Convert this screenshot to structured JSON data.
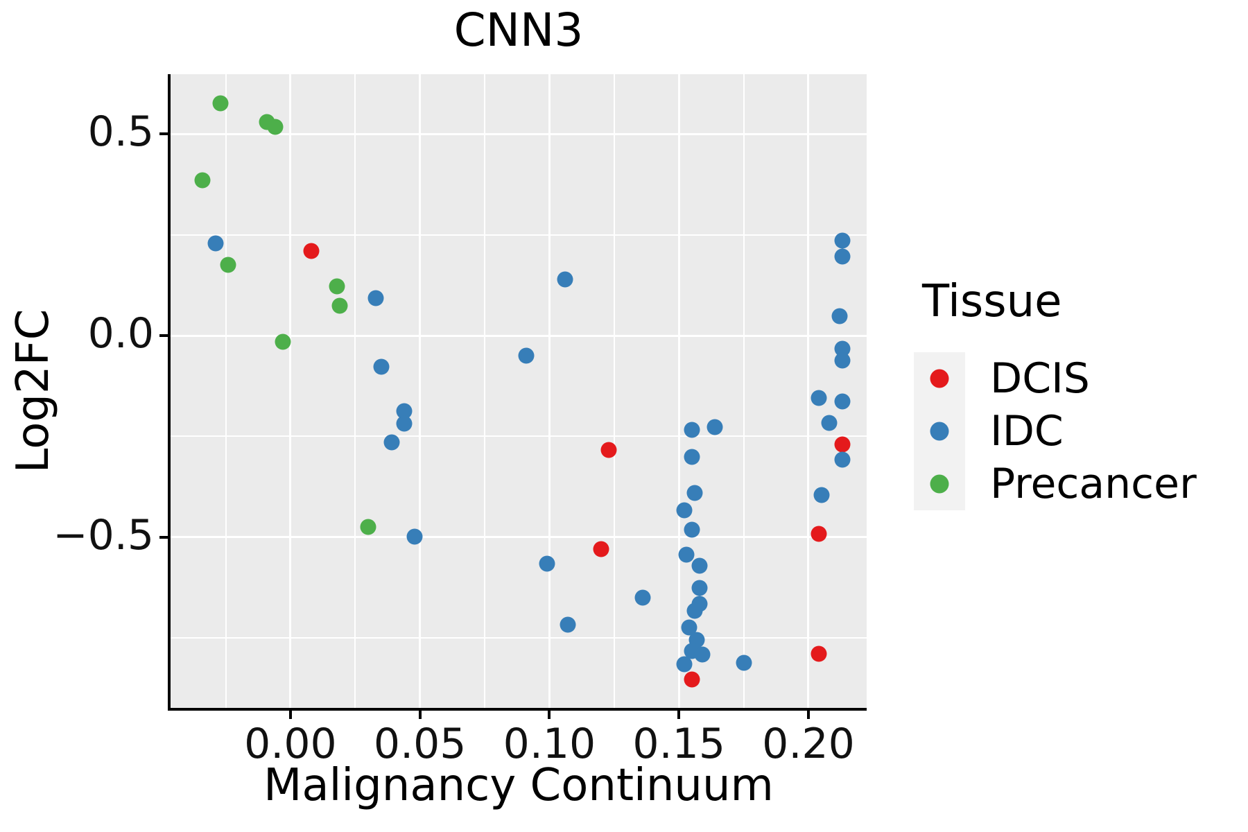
{
  "title": "CNN3",
  "axis": {
    "x_label": "Malignancy Continuum",
    "y_label": "Log2FC"
  },
  "legend": {
    "title": "Tissue",
    "entries": [
      {
        "label": "DCIS",
        "color": "#E41A1C"
      },
      {
        "label": "IDC",
        "color": "#377EB8"
      },
      {
        "label": "Precancer",
        "color": "#4DAF4A"
      }
    ]
  },
  "colors": {
    "panel_background": "#EBEBEB",
    "gridline": "#FFFFFF",
    "legend_key_background": "#F2F2F2",
    "axis_line": "#000000",
    "text": "#111111",
    "dcis_red": "#E41A1C",
    "idc_blue": "#377EB8",
    "precancer_green": "#4DAF4A"
  },
  "chart_data": {
    "type": "scatter",
    "title": "CNN3",
    "xlabel": "Malignancy Continuum",
    "ylabel": "Log2FC",
    "xlim": [
      -0.0463,
      0.2225
    ],
    "ylim": [
      -0.923,
      0.648
    ],
    "x_major_ticks": [
      0.0,
      0.05,
      0.1,
      0.15,
      0.2
    ],
    "x_tick_labels": [
      "0.00",
      "0.05",
      "0.10",
      "0.15",
      "0.20"
    ],
    "x_minor_ticks": [
      -0.025,
      0.025,
      0.075,
      0.125,
      0.175
    ],
    "y_major_ticks": [
      0.5,
      0.0,
      -0.5
    ],
    "y_tick_labels": [
      "0.5",
      "0.0",
      "−0.5"
    ],
    "y_minor_ticks": [
      0.25,
      -0.25,
      -0.75
    ],
    "grid": "on",
    "legend_position": "right",
    "series": [
      {
        "name": "DCIS",
        "color": "#E41A1C",
        "points": [
          [
            0.008,
            0.21
          ],
          [
            0.123,
            -0.284
          ],
          [
            0.12,
            -0.53
          ],
          [
            0.155,
            -0.852
          ],
          [
            0.213,
            -0.27
          ],
          [
            0.204,
            -0.491
          ],
          [
            0.204,
            -0.789
          ]
        ]
      },
      {
        "name": "IDC",
        "color": "#377EB8",
        "points": [
          [
            -0.029,
            0.229
          ],
          [
            0.033,
            0.093
          ],
          [
            0.106,
            0.14
          ],
          [
            0.035,
            -0.078
          ],
          [
            0.091,
            -0.05
          ],
          [
            0.044,
            -0.188
          ],
          [
            0.044,
            -0.219
          ],
          [
            0.039,
            -0.264
          ],
          [
            0.048,
            -0.498
          ],
          [
            0.099,
            -0.565
          ],
          [
            0.136,
            -0.65
          ],
          [
            0.107,
            -0.717
          ],
          [
            0.155,
            -0.234
          ],
          [
            0.164,
            -0.227
          ],
          [
            0.155,
            -0.3
          ],
          [
            0.156,
            -0.39
          ],
          [
            0.152,
            -0.433
          ],
          [
            0.155,
            -0.482
          ],
          [
            0.153,
            -0.543
          ],
          [
            0.158,
            -0.57
          ],
          [
            0.158,
            -0.626
          ],
          [
            0.158,
            -0.666
          ],
          [
            0.156,
            -0.683
          ],
          [
            0.154,
            -0.723
          ],
          [
            0.157,
            -0.755
          ],
          [
            0.155,
            -0.782
          ],
          [
            0.159,
            -0.79
          ],
          [
            0.152,
            -0.815
          ],
          [
            0.175,
            -0.811
          ],
          [
            0.213,
            0.236
          ],
          [
            0.213,
            0.196
          ],
          [
            0.212,
            0.048
          ],
          [
            0.213,
            -0.033
          ],
          [
            0.213,
            -0.062
          ],
          [
            0.204,
            -0.154
          ],
          [
            0.213,
            -0.164
          ],
          [
            0.208,
            -0.217
          ],
          [
            0.213,
            -0.307
          ],
          [
            0.205,
            -0.396
          ]
        ]
      },
      {
        "name": "Precancer",
        "color": "#4DAF4A",
        "points": [
          [
            -0.027,
            0.576
          ],
          [
            -0.009,
            0.529
          ],
          [
            -0.006,
            0.517
          ],
          [
            -0.034,
            0.385
          ],
          [
            -0.024,
            0.175
          ],
          [
            0.018,
            0.122
          ],
          [
            0.019,
            0.074
          ],
          [
            -0.003,
            -0.016
          ],
          [
            0.03,
            -0.474
          ]
        ]
      }
    ]
  }
}
